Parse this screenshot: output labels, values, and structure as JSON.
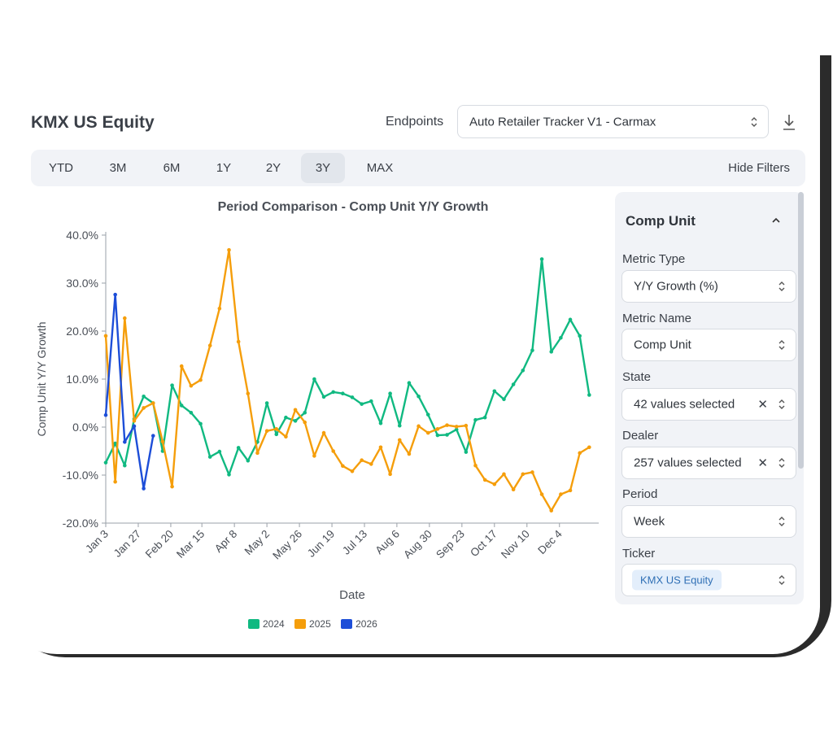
{
  "header": {
    "title": "KMX US Equity",
    "endpoints_label": "Endpoints",
    "endpoint_value": "Auto Retailer Tracker V1 - Carmax"
  },
  "tabs": [
    {
      "label": "YTD",
      "active": false
    },
    {
      "label": "3M",
      "active": false
    },
    {
      "label": "6M",
      "active": false
    },
    {
      "label": "1Y",
      "active": false
    },
    {
      "label": "2Y",
      "active": false
    },
    {
      "label": "3Y",
      "active": true
    },
    {
      "label": "MAX",
      "active": false
    }
  ],
  "hide_filters": "Hide Filters",
  "filters": {
    "title": "Comp Unit",
    "metric_type": {
      "label": "Metric Type",
      "value": "Y/Y Growth (%)"
    },
    "metric_name": {
      "label": "Metric Name",
      "value": "Comp Unit"
    },
    "state": {
      "label": "State",
      "value": "42 values selected",
      "clear": "✕"
    },
    "dealer": {
      "label": "Dealer",
      "value": "257 values selected",
      "clear": "✕"
    },
    "period": {
      "label": "Period",
      "value": "Week"
    },
    "ticker": {
      "label": "Ticker",
      "value": "KMX US Equity"
    }
  },
  "chart_data": {
    "type": "line",
    "title": "Period Comparison - Comp Unit Y/Y Growth",
    "xlabel": "Date",
    "ylabel": "Comp Unit Y/Y Growth",
    "ylim": [
      -20,
      40
    ],
    "yticks": [
      "40.0%",
      "30.0%",
      "20.0%",
      "10.0%",
      "0.0%",
      "-10.0%",
      "-20.0%"
    ],
    "xlim": [
      0,
      52
    ],
    "xticks": [
      {
        "label": "Jan 3",
        "week": 0
      },
      {
        "label": "Jan 27",
        "week": 3.43
      },
      {
        "label": "Feb 20",
        "week": 6.86
      },
      {
        "label": "Mar 15",
        "week": 10.14
      },
      {
        "label": "Apr 8",
        "week": 13.57
      },
      {
        "label": "May 2",
        "week": 17
      },
      {
        "label": "May 26",
        "week": 20.43
      },
      {
        "label": "Jun 19",
        "week": 23.86
      },
      {
        "label": "Jul 13",
        "week": 27.29
      },
      {
        "label": "Aug 6",
        "week": 30.71
      },
      {
        "label": "Aug 30",
        "week": 34.14
      },
      {
        "label": "Sep 23",
        "week": 37.57
      },
      {
        "label": "Oct 17",
        "week": 41
      },
      {
        "label": "Nov 10",
        "week": 44.43
      },
      {
        "label": "Dec 4",
        "week": 47.86
      }
    ],
    "grid": false,
    "legend": "bottom",
    "series": [
      {
        "name": "2024",
        "color": "#10b981",
        "x_step": 1,
        "values": [
          -7.4,
          -3.4,
          -8.0,
          1.7,
          6.4,
          5.0,
          -5.0,
          8.7,
          4.5,
          3.0,
          0.7,
          -6.2,
          -5.1,
          -9.9,
          -4.3,
          -7.0,
          -3.1,
          5.0,
          -1.5,
          2.0,
          1.3,
          3.0,
          10.0,
          6.3,
          7.3,
          7.0,
          6.2,
          4.8,
          5.4,
          0.8,
          7.0,
          0.3,
          9.2,
          6.4,
          2.6,
          -1.7,
          -1.6,
          -0.5,
          -5.2,
          1.5,
          2.0,
          7.5,
          5.8,
          8.9,
          11.8,
          16.0,
          35.0,
          15.7,
          18.6,
          22.4,
          19.0,
          6.7
        ]
      },
      {
        "name": "2025",
        "color": "#f59e0b",
        "x_step": 1,
        "values": [
          19.0,
          -11.4,
          22.7,
          1.3,
          4.0,
          5.0,
          -3.0,
          -12.4,
          12.7,
          8.6,
          9.8,
          17.0,
          24.7,
          36.9,
          17.8,
          7.0,
          -5.4,
          -0.8,
          -0.4,
          -2.0,
          3.6,
          1.0,
          -6.0,
          -1.2,
          -5.0,
          -8.1,
          -9.2,
          -6.9,
          -7.7,
          -4.2,
          -9.8,
          -2.7,
          -5.6,
          0.2,
          -1.2,
          -0.4,
          0.4,
          0.1,
          0.3,
          -8.0,
          -11.0,
          -11.9,
          -9.8,
          -13.0,
          -9.8,
          -9.4,
          -14.0,
          -17.4,
          -14.0,
          -13.2,
          -5.4,
          -4.2
        ]
      },
      {
        "name": "2026",
        "color": "#1d4ed8",
        "x_step": 1,
        "values": [
          2.5,
          27.6,
          -3.1,
          0.2,
          -12.8,
          -1.8
        ]
      }
    ]
  }
}
